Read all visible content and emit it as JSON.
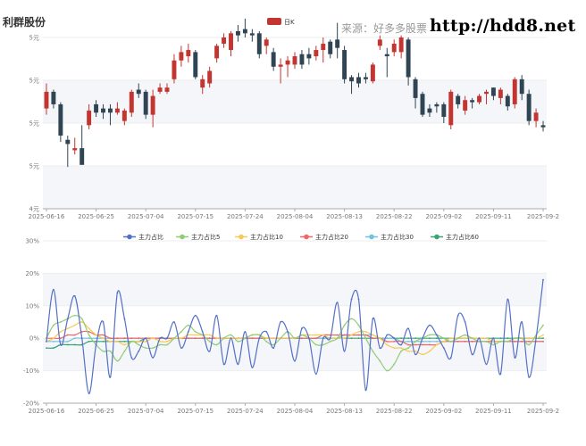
{
  "header": {
    "stock_name": "利群股份",
    "source": "来源：好多多股票",
    "site": "http://hdd8.net"
  },
  "colors": {
    "up": "#c23531",
    "down": "#2f4554",
    "grid": "#eeeeee",
    "band": "#f5f6fa",
    "axis": "#aaaaaa"
  },
  "chart_data": [
    {
      "type": "candlestick",
      "legend": [
        "日K"
      ],
      "y_tick_labels": [
        "5元",
        "5元",
        "5元",
        "5元",
        "4元"
      ],
      "ylim": [
        4.7,
        5.52
      ],
      "x_tick_labels": [
        "2025-06-16",
        "2025-06-25",
        "2025-07-04",
        "2025-07-15",
        "2025-07-24",
        "2025-08-04",
        "2025-08-13",
        "2025-08-22",
        "2025-09-02",
        "2025-09-11",
        "2025-09-2"
      ],
      "x_tick_index": [
        0,
        7,
        14,
        21,
        28,
        35,
        42,
        49,
        56,
        63,
        70
      ],
      "categories_count": 71,
      "ohlc": [
        [
          5.18,
          5.26,
          5.3,
          5.15
        ],
        [
          5.26,
          5.2,
          5.27,
          5.18
        ],
        [
          5.2,
          5.05,
          5.21,
          5.02
        ],
        [
          5.03,
          5.01,
          5.05,
          4.9
        ],
        [
          4.98,
          4.99,
          5.04,
          4.96
        ],
        [
          4.99,
          4.91,
          5.1,
          4.92
        ],
        [
          5.1,
          5.17,
          5.2,
          5.08
        ],
        [
          5.2,
          5.16,
          5.22,
          5.14
        ],
        [
          5.18,
          5.16,
          5.2,
          5.13
        ],
        [
          5.18,
          5.16,
          5.2,
          5.1
        ],
        [
          5.16,
          5.18,
          5.21,
          5.15
        ],
        [
          5.12,
          5.17,
          5.18,
          5.1
        ],
        [
          5.16,
          5.26,
          5.27,
          5.14
        ],
        [
          5.27,
          5.25,
          5.3,
          5.23
        ],
        [
          5.26,
          5.15,
          5.27,
          5.13
        ],
        [
          5.15,
          5.24,
          5.27,
          5.09
        ],
        [
          5.26,
          5.28,
          5.3,
          5.25
        ],
        [
          5.26,
          5.28,
          5.3,
          5.25
        ],
        [
          5.32,
          5.41,
          5.44,
          5.3
        ],
        [
          5.41,
          5.45,
          5.48,
          5.38
        ],
        [
          5.43,
          5.46,
          5.49,
          5.4
        ],
        [
          5.45,
          5.33,
          5.46,
          5.32
        ],
        [
          5.28,
          5.32,
          5.34,
          5.25
        ],
        [
          5.3,
          5.36,
          5.38,
          5.28
        ],
        [
          5.42,
          5.48,
          5.49,
          5.4
        ],
        [
          5.49,
          5.52,
          5.54,
          5.47
        ],
        [
          5.46,
          5.54,
          5.55,
          5.43
        ],
        [
          5.55,
          5.53,
          5.58,
          5.5
        ],
        [
          5.56,
          5.54,
          5.61,
          5.52
        ],
        [
          5.54,
          5.53,
          5.56,
          5.5
        ],
        [
          5.54,
          5.44,
          5.55,
          5.42
        ],
        [
          5.48,
          5.51,
          5.52,
          5.44
        ],
        [
          5.45,
          5.38,
          5.47,
          5.36
        ],
        [
          5.38,
          5.39,
          5.42,
          5.3
        ],
        [
          5.39,
          5.41,
          5.43,
          5.33
        ],
        [
          5.39,
          5.43,
          5.45,
          5.37
        ],
        [
          5.44,
          5.39,
          5.46,
          5.37
        ],
        [
          5.44,
          5.42,
          5.47,
          5.39
        ],
        [
          5.43,
          5.46,
          5.48,
          5.41
        ],
        [
          5.46,
          5.49,
          5.52,
          5.4
        ],
        [
          5.5,
          5.44,
          5.51,
          5.42
        ],
        [
          5.51,
          5.47,
          5.59,
          5.42
        ],
        [
          5.46,
          5.32,
          5.48,
          5.3
        ],
        [
          5.33,
          5.31,
          5.34,
          5.25
        ],
        [
          5.33,
          5.3,
          5.35,
          5.28
        ],
        [
          5.33,
          5.32,
          5.35,
          5.3
        ],
        [
          5.31,
          5.39,
          5.4,
          5.3
        ],
        [
          5.48,
          5.51,
          5.53,
          5.46
        ],
        [
          5.44,
          5.43,
          5.47,
          5.33
        ],
        [
          5.45,
          5.49,
          5.51,
          5.43
        ],
        [
          5.45,
          5.52,
          5.53,
          5.42
        ],
        [
          5.51,
          5.33,
          5.52,
          5.29
        ],
        [
          5.32,
          5.23,
          5.33,
          5.18
        ],
        [
          5.25,
          5.15,
          5.26,
          5.14
        ],
        [
          5.18,
          5.16,
          5.2,
          5.14
        ],
        [
          5.2,
          5.19,
          5.21,
          5.16
        ],
        [
          5.2,
          5.14,
          5.21,
          5.11
        ],
        [
          5.1,
          5.26,
          5.27,
          5.08
        ],
        [
          5.24,
          5.2,
          5.25,
          5.18
        ],
        [
          5.17,
          5.22,
          5.24,
          5.15
        ],
        [
          5.22,
          5.21,
          5.23,
          5.18
        ],
        [
          5.21,
          5.24,
          5.25,
          5.2
        ],
        [
          5.25,
          5.26,
          5.27,
          5.2
        ],
        [
          5.28,
          5.24,
          5.28,
          5.22
        ],
        [
          5.23,
          5.27,
          5.28,
          5.2
        ],
        [
          5.24,
          5.19,
          5.25,
          5.17
        ],
        [
          5.2,
          5.32,
          5.33,
          5.18
        ],
        [
          5.32,
          5.25,
          5.34,
          5.22
        ],
        [
          5.25,
          5.12,
          5.27,
          5.1
        ],
        [
          5.12,
          5.16,
          5.18,
          5.09
        ],
        [
          5.1,
          5.09,
          5.12,
          5.07
        ]
      ]
    },
    {
      "type": "line",
      "legend_labels": [
        "主力占比",
        "主力占比5",
        "主力占比10",
        "主力占比20",
        "主力占比30",
        "主力占比60"
      ],
      "y_tick_labels": [
        "30%",
        "20%",
        "10%",
        "0%",
        "-10%",
        "-20%"
      ],
      "ylim": [
        -20,
        30
      ],
      "x_tick_labels": [
        "2025-06-16",
        "2025-06-25",
        "2025-07-04",
        "2025-07-15",
        "2025-07-24",
        "2025-08-04",
        "2025-08-13",
        "2025-08-22",
        "2025-09-02",
        "2025-09-11",
        "2025-09-2"
      ],
      "series": [
        {
          "name": "主力占比",
          "color": "#5470c6",
          "values": [
            -1,
            15,
            -2,
            6,
            13,
            0,
            -17,
            -2,
            5,
            -12,
            14,
            6,
            -6,
            -4,
            0,
            -6,
            0,
            0,
            5,
            -3,
            2,
            7,
            2,
            -4,
            7,
            -8,
            0,
            -8,
            2,
            -9,
            0,
            2,
            -3,
            5,
            2,
            -7,
            3,
            0,
            -11,
            0,
            0,
            11,
            -4,
            12,
            12,
            -16,
            6,
            -3,
            1,
            0,
            -2,
            3,
            -5,
            0,
            4,
            1,
            -3,
            -6,
            7,
            5,
            -5,
            0,
            -8,
            0,
            -11,
            12,
            -6,
            5,
            -12,
            0,
            18
          ]
        },
        {
          "name": "主力占比5",
          "color": "#91cc75",
          "values": [
            0,
            4,
            5,
            6,
            7,
            6,
            1,
            -2,
            -4,
            -4,
            -7,
            -4,
            -1,
            -2,
            -3,
            -3,
            -2,
            -2,
            0,
            2,
            4,
            2,
            1,
            -1,
            -2,
            0,
            1,
            -1,
            0,
            1,
            1,
            -1,
            -2,
            0,
            2,
            0,
            1,
            0,
            -2,
            -2,
            -1,
            0,
            4,
            6,
            4,
            0,
            -4,
            -7,
            -10,
            -8,
            -4,
            -3,
            -1,
            0,
            1,
            1,
            0,
            -1,
            0,
            1,
            0,
            -1,
            -1,
            -2,
            -1,
            -1,
            0,
            0,
            -2,
            1,
            4
          ]
        },
        {
          "name": "主力占比10",
          "color": "#fac858",
          "values": [
            -1,
            0,
            2,
            3,
            4,
            5,
            3,
            1,
            0,
            -1,
            -1,
            -2,
            -1,
            -1,
            -1,
            0,
            -1,
            -1,
            0,
            0,
            1,
            1,
            1,
            1,
            0,
            0,
            0,
            0,
            0,
            1,
            1,
            0,
            0,
            0,
            0,
            0,
            1,
            1,
            1,
            1,
            0,
            0,
            0,
            1,
            2,
            2,
            1,
            0,
            -2,
            -3,
            -3,
            -4,
            -4,
            -5,
            -4,
            -2,
            -1,
            0,
            0,
            0,
            0,
            0,
            0,
            -1,
            -1,
            -1,
            0,
            0,
            0,
            0,
            1
          ]
        },
        {
          "name": "主力占比20",
          "color": "#ee6666",
          "values": [
            0,
            0,
            0,
            1,
            1,
            2,
            2,
            1,
            1,
            0,
            0,
            0,
            0,
            0,
            0,
            0,
            0,
            0,
            0,
            0,
            0,
            0,
            0,
            0,
            0,
            0,
            0,
            0,
            0,
            0,
            0,
            0,
            0,
            0,
            0,
            0,
            0,
            0,
            0,
            1,
            1,
            1,
            1,
            1,
            1,
            1,
            0,
            0,
            -1,
            -1,
            -1,
            -2,
            -2,
            -2,
            -2,
            -2,
            -1,
            -1,
            -1,
            -1,
            -1,
            -1,
            -1,
            -1,
            -1,
            -1,
            -1,
            -1,
            -1,
            -1,
            -1
          ]
        },
        {
          "name": "主力占比30",
          "color": "#73c0de",
          "values": [
            -1,
            -1,
            -1,
            -1,
            0,
            0,
            0,
            0,
            0,
            0,
            0,
            0,
            0,
            0,
            0,
            0,
            0,
            0,
            0,
            0,
            0,
            0,
            0,
            0,
            0,
            0,
            0,
            0,
            0,
            0,
            0,
            0,
            0,
            0,
            0,
            0,
            0,
            0,
            0,
            0,
            0,
            0,
            1,
            1,
            1,
            1,
            1,
            0,
            0,
            0,
            -1,
            -1,
            -1,
            -1,
            -1,
            -1,
            -1,
            -1,
            -1,
            -1,
            -1,
            -1,
            -1,
            -1,
            -1,
            -1,
            -1,
            -1,
            -1,
            -1,
            -1
          ]
        },
        {
          "name": "主力占比60",
          "color": "#3ba272",
          "values": [
            -3,
            -3,
            -2,
            -2,
            -2,
            -2,
            -1,
            -1,
            -1,
            -1,
            -1,
            -1,
            -1,
            -1,
            0,
            0,
            0,
            0,
            0,
            0,
            0,
            0,
            0,
            0,
            0,
            0,
            0,
            0,
            0,
            0,
            0,
            0,
            0,
            0,
            0,
            0,
            0,
            0,
            0,
            0,
            0,
            0,
            0,
            0,
            0,
            0,
            0,
            0,
            0,
            0,
            0,
            0,
            0,
            0,
            0,
            0,
            0,
            0,
            0,
            0,
            0,
            0,
            0,
            0,
            0,
            0,
            0,
            0,
            0,
            0,
            0
          ]
        }
      ]
    }
  ]
}
